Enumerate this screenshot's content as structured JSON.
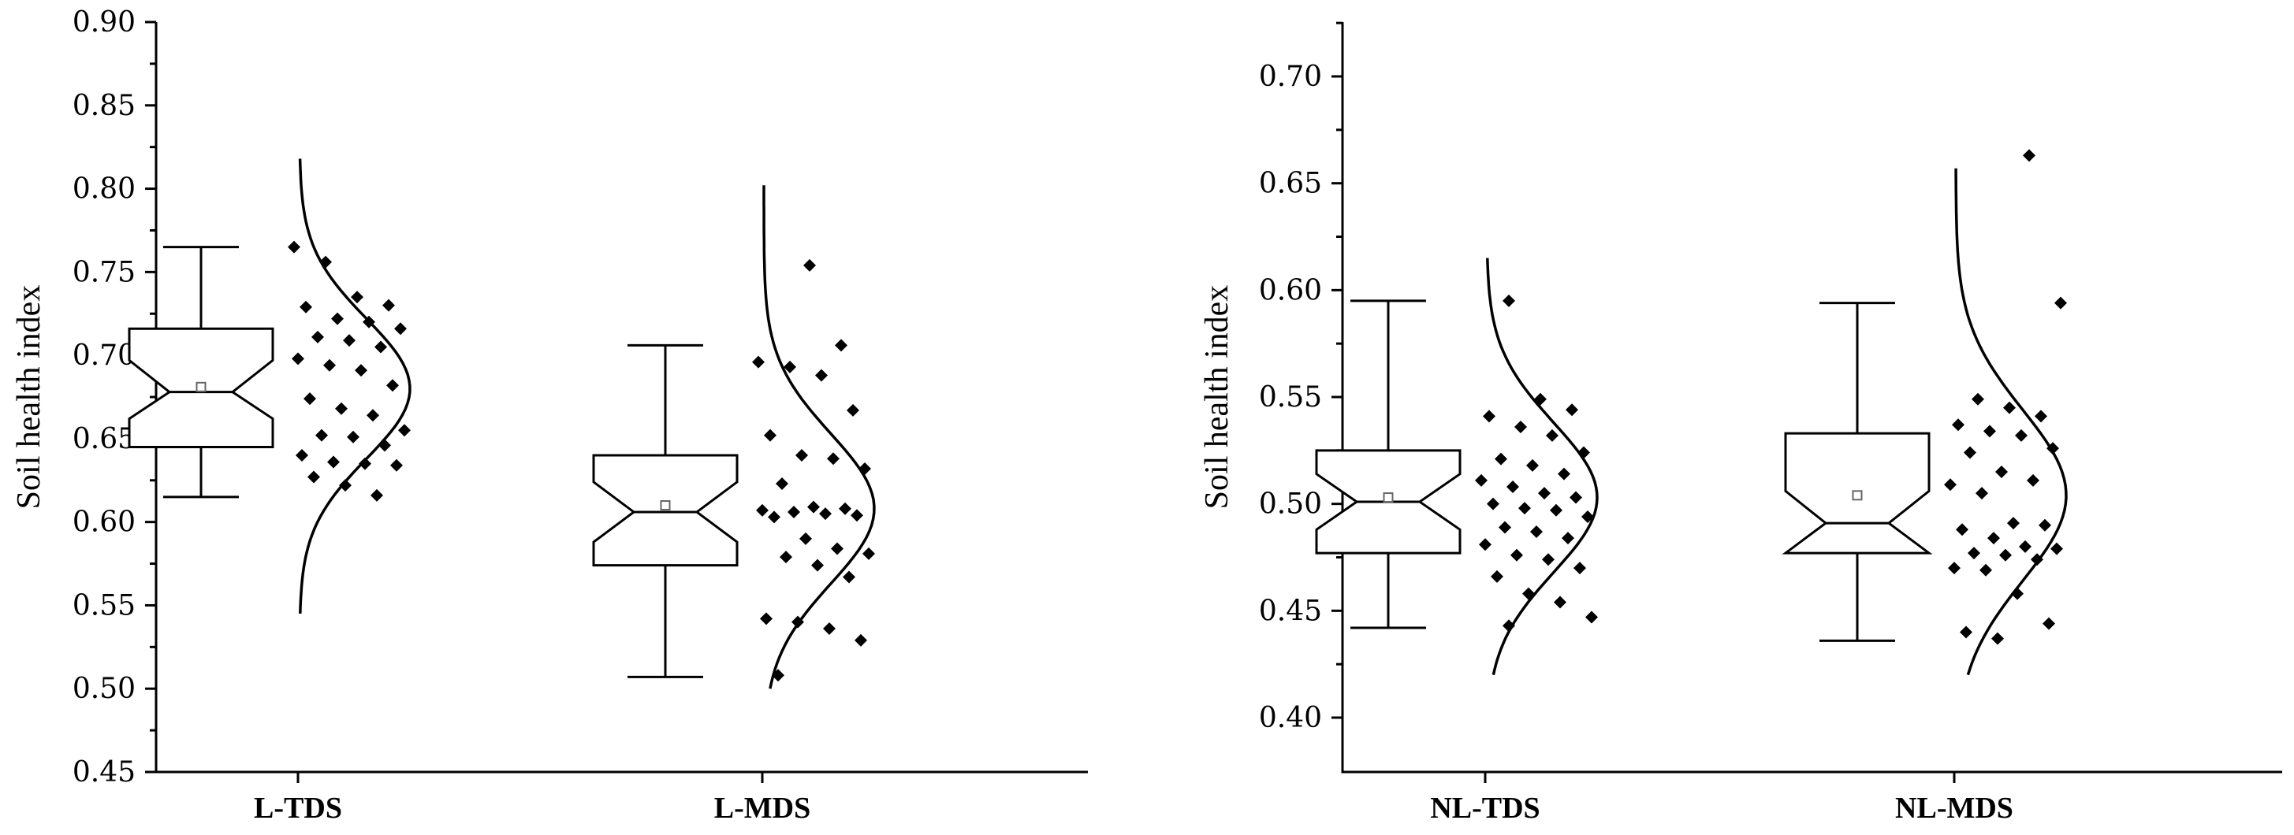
{
  "chart_data": [
    {
      "type": "boxplot",
      "ylabel": "Soil health index",
      "ylim": [
        0.45,
        0.9
      ],
      "yticks": [
        "0.45",
        "0.50",
        "0.55",
        "0.60",
        "0.65",
        "0.70",
        "0.75",
        "0.80",
        "0.85",
        "0.90"
      ],
      "groups": [
        {
          "label": "L-TDS",
          "whisker_low": 0.615,
          "q1": 0.645,
          "median": 0.678,
          "q3": 0.716,
          "whisker_high": 0.765,
          "mean": 0.681,
          "notch_low": 0.662,
          "notch_high": 0.697,
          "curve_mu": 0.68,
          "curve_sd": 0.042,
          "curve_range": [
            0.545,
            0.818
          ],
          "points": [
            0.765,
            0.756,
            0.735,
            0.73,
            0.729,
            0.722,
            0.72,
            0.716,
            0.711,
            0.709,
            0.705,
            0.698,
            0.694,
            0.691,
            0.682,
            0.674,
            0.668,
            0.664,
            0.655,
            0.652,
            0.651,
            0.646,
            0.64,
            0.636,
            0.635,
            0.634,
            0.627,
            0.622,
            0.616
          ]
        },
        {
          "label": "L-MDS",
          "whisker_low": 0.507,
          "q1": 0.574,
          "median": 0.606,
          "q3": 0.64,
          "whisker_high": 0.706,
          "mean": 0.61,
          "notch_low": 0.588,
          "notch_high": 0.624,
          "curve_mu": 0.608,
          "curve_sd": 0.045,
          "curve_range": [
            0.5,
            0.802
          ],
          "points": [
            0.754,
            0.706,
            0.696,
            0.693,
            0.688,
            0.667,
            0.652,
            0.64,
            0.638,
            0.632,
            0.623,
            0.609,
            0.608,
            0.607,
            0.606,
            0.605,
            0.604,
            0.603,
            0.59,
            0.584,
            0.581,
            0.579,
            0.574,
            0.567,
            0.542,
            0.54,
            0.536,
            0.529,
            0.508
          ]
        }
      ]
    },
    {
      "type": "boxplot",
      "ylabel": "Soil health index",
      "ylim": [
        0.375,
        0.725
      ],
      "yticks": [
        "0.40",
        "0.45",
        "0.50",
        "0.55",
        "0.60",
        "0.65",
        "0.70"
      ],
      "groups": [
        {
          "label": "NL-TDS",
          "whisker_low": 0.442,
          "q1": 0.477,
          "median": 0.501,
          "q3": 0.525,
          "whisker_high": 0.595,
          "mean": 0.503,
          "notch_low": 0.488,
          "notch_high": 0.514,
          "curve_mu": 0.503,
          "curve_sd": 0.035,
          "curve_range": [
            0.42,
            0.615
          ],
          "points": [
            0.595,
            0.549,
            0.544,
            0.541,
            0.536,
            0.532,
            0.524,
            0.521,
            0.518,
            0.514,
            0.511,
            0.508,
            0.505,
            0.503,
            0.5,
            0.498,
            0.497,
            0.494,
            0.489,
            0.487,
            0.484,
            0.481,
            0.476,
            0.474,
            0.47,
            0.466,
            0.458,
            0.454,
            0.447,
            0.443
          ]
        },
        {
          "label": "NL-MDS",
          "whisker_low": 0.436,
          "q1": 0.477,
          "median": 0.491,
          "q3": 0.533,
          "whisker_high": 0.594,
          "mean": 0.504,
          "notch_low": 0.477,
          "notch_high": 0.506,
          "curve_mu": 0.504,
          "curve_sd": 0.04,
          "curve_range": [
            0.42,
            0.657
          ],
          "points": [
            0.663,
            0.594,
            0.549,
            0.545,
            0.541,
            0.537,
            0.534,
            0.532,
            0.526,
            0.524,
            0.515,
            0.511,
            0.509,
            0.505,
            0.491,
            0.49,
            0.488,
            0.484,
            0.48,
            0.479,
            0.477,
            0.476,
            0.474,
            0.47,
            0.469,
            0.458,
            0.444,
            0.44,
            0.437
          ]
        }
      ]
    }
  ]
}
